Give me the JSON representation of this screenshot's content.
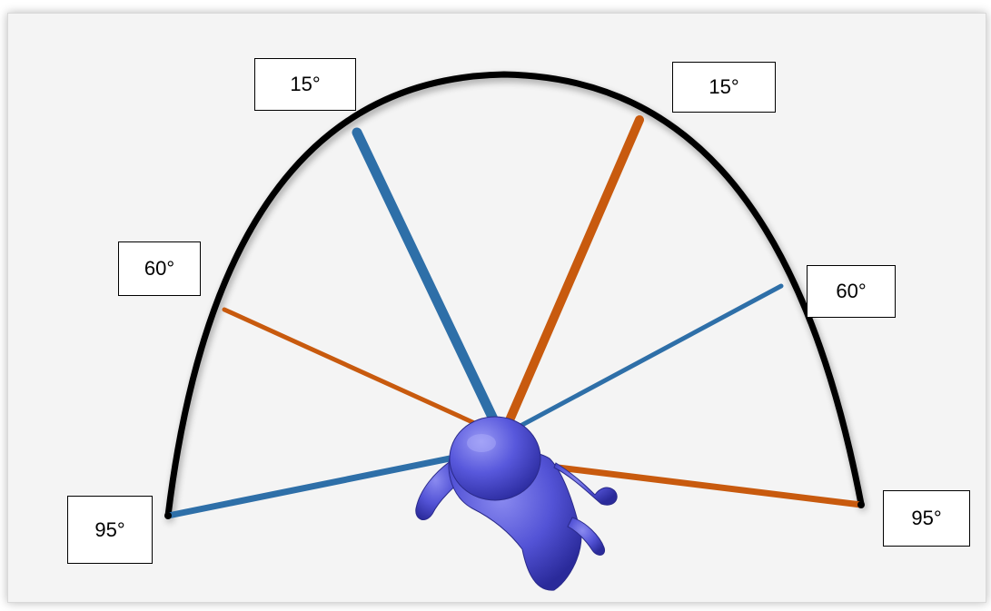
{
  "labels": {
    "top_left": "15°",
    "top_right": "15°",
    "mid_left": "60°",
    "mid_right": "60°",
    "bottom_left": "95°",
    "bottom_right": "95°"
  },
  "colors": {
    "arc": "#000000",
    "blue_line": "#2e6fa8",
    "orange_line": "#c85a0e",
    "figure": "#5353d6",
    "background": "#f4f4f4"
  },
  "icons": {
    "figure": "person-top-view-icon"
  }
}
